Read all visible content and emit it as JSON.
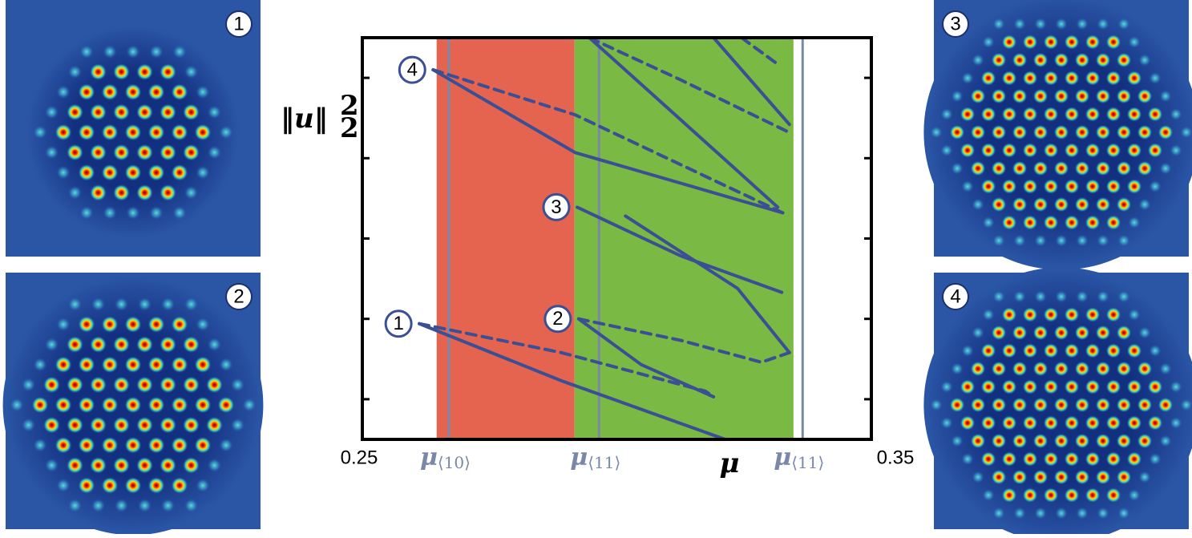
{
  "chart_data": {
    "type": "line",
    "xlabel": "μ",
    "ylabel": {
      "text": "‖u‖",
      "sup": "2",
      "sub": "2"
    },
    "xlim": [
      0.25,
      0.35
    ],
    "xticks": [
      0.25,
      0.35
    ],
    "ylim": [
      0,
      5
    ],
    "yticks": [
      0.5,
      1.5,
      2.5,
      3.5,
      4.5
    ],
    "line_color": "#3b4f94",
    "bands": [
      {
        "xmin": 0.2646,
        "xmax": 0.2917,
        "color": "#e5644f"
      },
      {
        "xmin": 0.2917,
        "xmax": 0.3347,
        "color": "#7ab943"
      }
    ],
    "vlines": [
      {
        "x": 0.267,
        "symbol": "μ",
        "subscript": "⟨10⟩"
      },
      {
        "x": 0.2965,
        "symbol": "μ",
        "subscript": "⟨11⟩"
      },
      {
        "x": 0.3365,
        "symbol": "μ",
        "subscript": "⟨11⟩"
      }
    ],
    "vline_color": "#7a88a8",
    "series": [
      {
        "label": "1",
        "dashed": false,
        "x": [
          0.2612,
          0.2891,
          0.3213
        ],
        "values": [
          1.44,
          0.73,
          0
        ]
      },
      {
        "dashed": true,
        "x": [
          0.2612,
          0.2891,
          0.3174,
          0.319
        ],
        "values": [
          1.44,
          1.08,
          0.6,
          0.53
        ]
      },
      {
        "label": "2",
        "dashed": true,
        "x": [
          0.2925,
          0.3127,
          0.3284,
          0.3339
        ],
        "values": [
          1.5,
          1.23,
          0.96,
          1.08
        ]
      },
      {
        "dashed": false,
        "x": [
          0.2925,
          0.3048,
          0.319
        ],
        "values": [
          1.5,
          0.93,
          0.53
        ]
      },
      {
        "label": "3",
        "dashed": false,
        "x": [
          0.2922,
          0.3127,
          0.3324
        ],
        "values": [
          2.89,
          2.28,
          1.83
        ]
      },
      {
        "dashed": false,
        "x": [
          0.3339,
          0.3237,
          0.3017
        ],
        "values": [
          1.08,
          1.88,
          2.78
        ]
      },
      {
        "label": "4",
        "dashed": false,
        "x": [
          0.2639,
          0.2918,
          0.3326
        ],
        "values": [
          4.6,
          3.57,
          2.82
        ]
      },
      {
        "dashed": true,
        "x": [
          0.2639,
          0.2918,
          0.3326
        ],
        "values": [
          4.6,
          4.04,
          2.82
        ]
      },
      {
        "dashed": false,
        "x": [
          0.2946,
          0.3127,
          0.3316
        ],
        "values": [
          5,
          3.97,
          2.89
        ]
      },
      {
        "dashed": true,
        "x": [
          0.2946,
          0.3127,
          0.3339
        ],
        "values": [
          5,
          4.47,
          3.82
        ]
      },
      {
        "dashed": false,
        "x": [
          0.319,
          0.3339
        ],
        "values": [
          5,
          3.92
        ]
      },
      {
        "dashed": true,
        "x": [
          0.3245,
          0.3316
        ],
        "values": [
          5,
          4.67
        ]
      }
    ]
  },
  "panels": [
    "1",
    "2",
    "3",
    "4"
  ]
}
